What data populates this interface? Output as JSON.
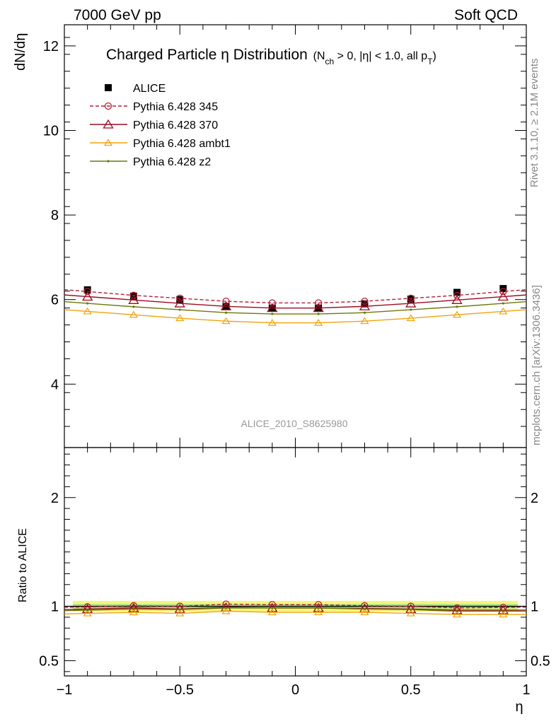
{
  "header": {
    "left": "7000 GeV pp",
    "right": "Soft QCD"
  },
  "side_labels": {
    "rivet": "Rivet 3.1.10, ≥ 2.1M events",
    "mcplots": "mcplots.cern.ch [arXiv:1306.3436]"
  },
  "chart_data": [
    {
      "type": "line",
      "title": "Charged Particle η Distribution",
      "title_qualifier": {
        "prefix": "(N",
        "sub1": "ch",
        "middle": " > 0, |η| < 1.0, all p",
        "sub2": "T",
        "suffix": ")"
      },
      "xlabel": "",
      "ylabel": "dN/dη",
      "xlim": [
        -1.0,
        1.0
      ],
      "ylim": [
        2.5,
        12.5
      ],
      "yticks": [
        4,
        6,
        8,
        10,
        12
      ],
      "ytick_labels": [
        "4",
        "6",
        "8",
        "10",
        "12"
      ],
      "watermark": "ALICE_2010_S8625980",
      "x": [
        -0.9,
        -0.7,
        -0.5,
        -0.3,
        -0.1,
        0.1,
        0.3,
        0.5,
        0.7,
        0.9
      ],
      "series": [
        {
          "name": "ALICE",
          "color": "#000000",
          "marker": "square-filled",
          "line": "none",
          "values": [
            6.23,
            6.08,
            6.0,
            5.84,
            5.8,
            5.8,
            5.9,
            6.01,
            6.17,
            6.26
          ]
        },
        {
          "name": "Pythia 6.428 345",
          "color": "#b2203a",
          "marker": "circle-open",
          "line": "dashed",
          "values": [
            6.19,
            6.1,
            6.03,
            5.96,
            5.92,
            5.92,
            5.96,
            6.03,
            6.1,
            6.19
          ]
        },
        {
          "name": "Pythia 6.428 370",
          "color": "#9b0b20",
          "marker": "triangle-open",
          "line": "solid",
          "values": [
            6.07,
            5.99,
            5.91,
            5.84,
            5.8,
            5.8,
            5.84,
            5.91,
            5.99,
            6.07
          ]
        },
        {
          "name": "Pythia 6.428 ambt1",
          "color": "#f0a30c",
          "marker": "triangle-open-small",
          "line": "solid",
          "values": [
            5.72,
            5.64,
            5.56,
            5.49,
            5.45,
            5.45,
            5.49,
            5.56,
            5.64,
            5.72
          ]
        },
        {
          "name": "Pythia 6.428 z2",
          "color": "#6b7a0b",
          "marker": "dot",
          "line": "solid",
          "values": [
            5.91,
            5.83,
            5.76,
            5.69,
            5.66,
            5.66,
            5.69,
            5.76,
            5.83,
            5.91
          ]
        }
      ]
    },
    {
      "type": "line",
      "title": "",
      "xlabel": "η",
      "ylabel": "Ratio to ALICE",
      "xlim": [
        -1.0,
        1.0
      ],
      "ylim": [
        0.36,
        2.46
      ],
      "yticks": [
        0.5,
        1,
        2
      ],
      "ytick_labels": [
        "0.5",
        "1",
        "2"
      ],
      "xticks": [
        -1,
        -0.5,
        0,
        0.5,
        1
      ],
      "xtick_labels": [
        "−1",
        "−0.5",
        "0",
        "0.5",
        "1"
      ],
      "band_yellow": [
        0.95,
        1.05
      ],
      "band_green": [
        0.98,
        1.02
      ],
      "x": [
        -0.9,
        -0.7,
        -0.5,
        -0.3,
        -0.1,
        0.1,
        0.3,
        0.5,
        0.7,
        0.9
      ],
      "series": [
        {
          "name": "Pythia 6.428 345",
          "color": "#b2203a",
          "marker": "circle-open",
          "line": "dashed",
          "values": [
            0.995,
            1.005,
            1.0,
            1.02,
            1.015,
            1.015,
            1.005,
            1.0,
            0.985,
            0.99
          ]
        },
        {
          "name": "Pythia 6.428 370",
          "color": "#9b0b20",
          "marker": "triangle-open",
          "line": "solid",
          "values": [
            0.975,
            0.985,
            0.975,
            0.99,
            0.985,
            0.985,
            0.98,
            0.975,
            0.965,
            0.965
          ]
        },
        {
          "name": "Pythia 6.428 ambt1",
          "color": "#f0a30c",
          "marker": "triangle-open-small",
          "line": "solid",
          "values": [
            0.935,
            0.945,
            0.935,
            0.955,
            0.945,
            0.945,
            0.945,
            0.935,
            0.925,
            0.925
          ]
        },
        {
          "name": "Pythia 6.428 z2",
          "color": "#6b7a0b",
          "marker": "dot",
          "line": "solid",
          "values": [
            0.965,
            0.975,
            0.97,
            0.985,
            0.985,
            0.985,
            0.975,
            0.97,
            0.955,
            0.955
          ]
        }
      ]
    }
  ]
}
